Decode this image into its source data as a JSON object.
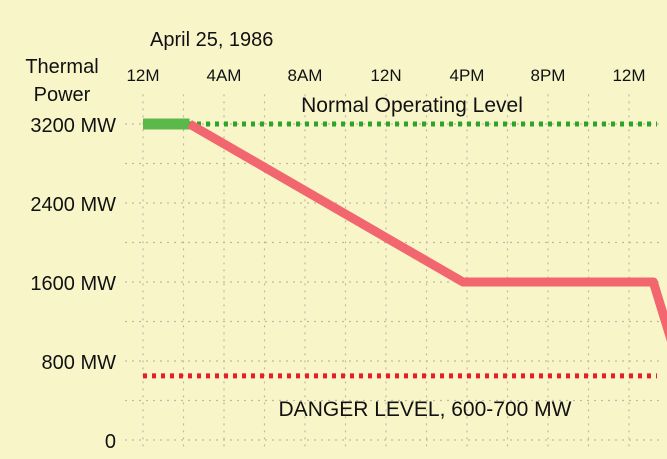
{
  "chart_data": {
    "type": "line",
    "date_label": "April 25, 1986",
    "ylabel": [
      "Thermal",
      "Power"
    ],
    "x_ticks": [
      "12M",
      "4AM",
      "8AM",
      "12N",
      "4PM",
      "8PM",
      "12M"
    ],
    "x_hours": [
      0,
      4,
      8,
      12,
      16,
      20,
      24
    ],
    "xlim": [
      0,
      27
    ],
    "y_ticks": [
      {
        "value": 3200,
        "label": "3200 MW"
      },
      {
        "value": 2400,
        "label": "2400 MW"
      },
      {
        "value": 1600,
        "label": "1600 MW"
      },
      {
        "value": 800,
        "label": "800 MW"
      },
      {
        "value": 0,
        "label": "0"
      }
    ],
    "ylim": [
      0,
      3500
    ],
    "grid": true,
    "series": [
      {
        "color": "#5bb84a",
        "x": [
          0,
          2.3
        ],
        "y": [
          3200,
          3200
        ]
      },
      {
        "color": "#f2676f",
        "x": [
          2.3,
          15.8,
          25.2,
          27
        ],
        "y": [
          3200,
          1600,
          1600,
          400
        ]
      }
    ],
    "reference_lines": [
      {
        "label": "Normal Operating Level",
        "value": 3200,
        "color": "#2aa52a"
      },
      {
        "label": "DANGER LEVEL, 600-700 MW",
        "value": 650,
        "color": "#e61e28"
      }
    ]
  }
}
